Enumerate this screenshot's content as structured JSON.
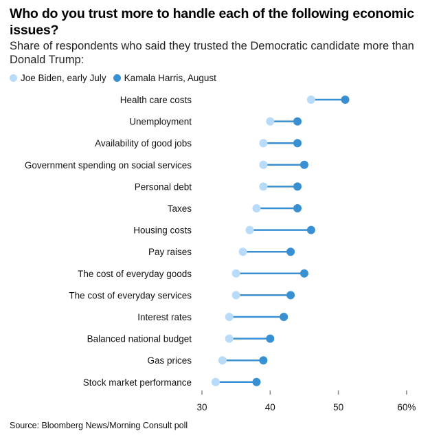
{
  "chart_data": {
    "type": "dumbbell",
    "title": "Who do you trust more to handle each of the following economic issues?",
    "subtitle": "Share of respondents who said they trusted the Democratic candidate more than Donald Trump:",
    "xlabel": "",
    "ylabel": "",
    "xlim": [
      30,
      62
    ],
    "xticks": [
      30,
      40,
      50,
      60
    ],
    "xtick_labels": [
      "30",
      "40",
      "50",
      "60%"
    ],
    "grid": false,
    "legend_position": "top-left",
    "categories": [
      "Health care costs",
      "Unemployment",
      "Availability of good jobs",
      "Government spending on social services",
      "Personal debt",
      "Taxes",
      "Housing costs",
      "Pay raises",
      "The cost of everyday goods",
      "The cost of everyday services",
      "Interest rates",
      "Balanced national budget",
      "Gas prices",
      "Stock market performance"
    ],
    "series": [
      {
        "name": "Joe Biden, early July",
        "color": "#b9dbfa",
        "values": [
          46,
          40,
          39,
          39,
          39,
          38,
          37,
          36,
          35,
          35,
          34,
          34,
          33,
          32
        ]
      },
      {
        "name": "Kamala Harris, August",
        "color": "#388fd1",
        "values": [
          51,
          44,
          44,
          45,
          44,
          44,
          46,
          43,
          45,
          43,
          42,
          40,
          39,
          38
        ]
      }
    ],
    "connector_color": "#388fd1",
    "source": "Source: Bloomberg News/Morning Consult poll"
  }
}
